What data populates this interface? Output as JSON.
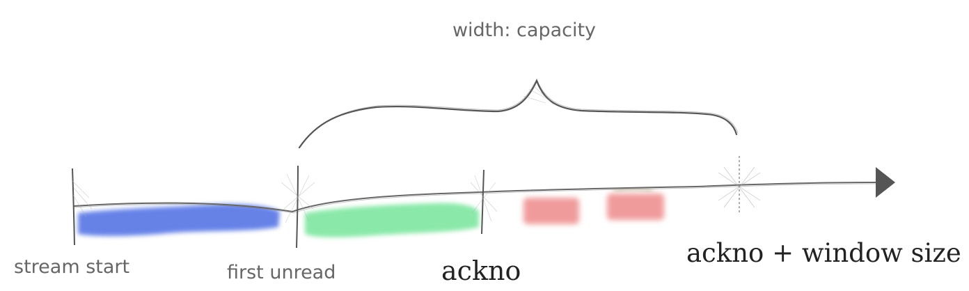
{
  "title": "width: capacity",
  "labels": {
    "stream_start": "stream start",
    "first_unread": "first unread",
    "ackno": "ackno",
    "ackno_window": "ackno + window size"
  },
  "colors": {
    "background": "#ffffff",
    "line": "#555555",
    "text_light": "#666666",
    "text_dark": "#222222",
    "segment_read": "#5a78e6",
    "segment_unread": "#7ee6a0",
    "segment_out_of_order": "#ee8a8a",
    "arrow_head": "#555555"
  }
}
